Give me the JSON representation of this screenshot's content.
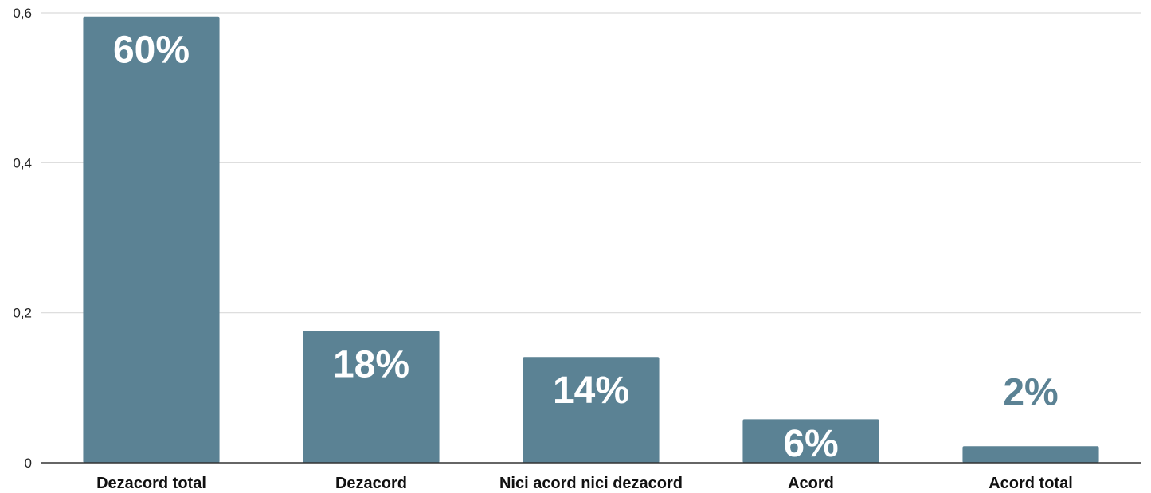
{
  "chart_data": {
    "type": "bar",
    "categories": [
      "Dezacord total",
      "Dezacord",
      "Nici acord nici dezacord",
      "Acord",
      "Acord total"
    ],
    "values": [
      0.595,
      0.176,
      0.141,
      0.058,
      0.022
    ],
    "data_labels": [
      "60%",
      "18%",
      "14%",
      "6%",
      "2%"
    ],
    "ylim": [
      0,
      0.6
    ],
    "yticks": [
      0,
      0.2,
      0.4,
      0.6
    ],
    "ytick_labels": [
      "0",
      "0,2",
      "0,4",
      "0,6"
    ],
    "title": "",
    "xlabel": "",
    "ylabel": "",
    "grid": true,
    "legend": "none",
    "bar_color": "#5b8294",
    "label_color_inside": "#ffffff",
    "label_color_outside": "#5b8294"
  }
}
